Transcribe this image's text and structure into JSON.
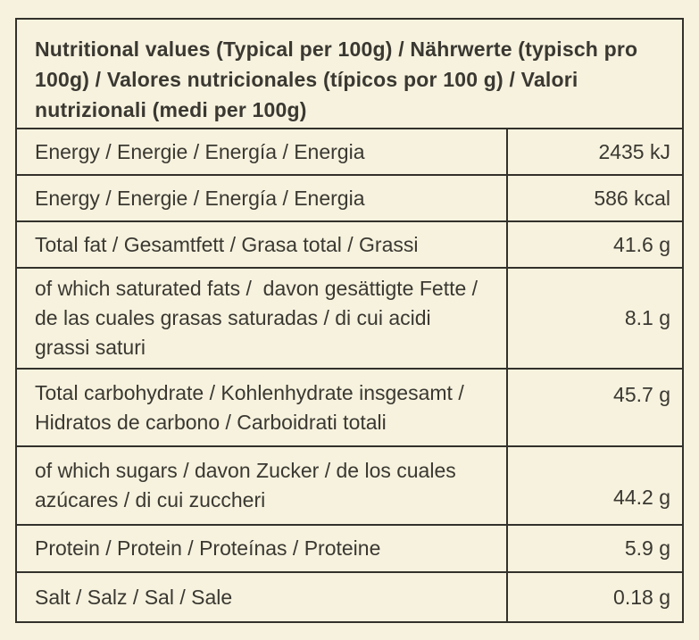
{
  "page": {
    "background_color": "#f6f2de",
    "text_color": "#3a3831",
    "border_color": "#33312b"
  },
  "table": {
    "header": "Nutritional values (Typical per 100g) / Nährwerte (typisch pro 100g) / Valores nutricionales (típicos por 100 g) / Valori nutrizionali (medi per 100g)",
    "rows": [
      {
        "label": "Energy / Energie / Energía / Energia",
        "value": "2435 kJ"
      },
      {
        "label": "Energy / Energie / Energía / Energia",
        "value": "586 kcal"
      },
      {
        "label": "Total fat / Gesamtfett / Grasa total / Grassi",
        "value": "41.6 g"
      },
      {
        "label": "of which saturated fats /  davon gesättigte Fette / de las cuales grasas saturadas / di cui acidi grassi saturi",
        "value": "8.1 g"
      },
      {
        "label": "Total carbohydrate / Kohlenhydrate insgesamt / Hidratos de carbono / Carboidrati totali",
        "value": "45.7 g"
      },
      {
        "label": "of which sugars / davon Zucker / de los cuales azúcares / di cui zuccheri",
        "value": "44.2 g"
      },
      {
        "label": "Protein / Protein / Proteínas / Proteine",
        "value": "5.9 g"
      },
      {
        "label": "Salt / Salz / Sal / Sale",
        "value": "0.18 g"
      }
    ]
  }
}
